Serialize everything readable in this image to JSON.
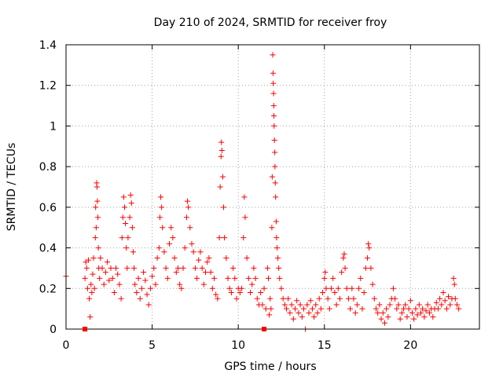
{
  "chart_data": {
    "type": "scatter",
    "title": "Day 210 of 2024, SRMTID for receiver froy",
    "xlabel": "GPS time / hours",
    "ylabel": "SRMTID / TECUs",
    "xlim": [
      0,
      24
    ],
    "ylim": [
      0,
      1.4
    ],
    "x_ticks": [
      0,
      5,
      10,
      15,
      20
    ],
    "x_tick_labels": [
      "0",
      "5",
      "10",
      "15",
      "20"
    ],
    "y_ticks": [
      0,
      0.2,
      0.4,
      0.6,
      0.8,
      1.0,
      1.2,
      1.4
    ],
    "y_tick_labels": [
      "0",
      "0.2",
      "0.4",
      "0.6",
      "0.8",
      "1",
      "1.2",
      "1.4"
    ],
    "grid": true,
    "marker": "plus",
    "color": "#ff0000",
    "outage_markers_x": [
      1.1,
      11.5
    ],
    "series": [
      {
        "name": "SRMTID",
        "points": [
          [
            0.0,
            0.26
          ],
          [
            1.1,
            0.25
          ],
          [
            1.15,
            0.33
          ],
          [
            1.2,
            0.3
          ],
          [
            1.25,
            0.2
          ],
          [
            1.3,
            0.34
          ],
          [
            1.35,
            0.15
          ],
          [
            1.4,
            0.06
          ],
          [
            1.45,
            0.22
          ],
          [
            1.5,
            0.18
          ],
          [
            1.55,
            0.27
          ],
          [
            1.6,
            0.35
          ],
          [
            1.65,
            0.2
          ],
          [
            1.7,
            0.45
          ],
          [
            1.72,
            0.6
          ],
          [
            1.75,
            0.5
          ],
          [
            1.78,
            0.72
          ],
          [
            1.8,
            0.7
          ],
          [
            1.82,
            0.63
          ],
          [
            1.85,
            0.55
          ],
          [
            1.88,
            0.4
          ],
          [
            1.9,
            0.3
          ],
          [
            1.95,
            0.25
          ],
          [
            2.0,
            0.35
          ],
          [
            2.1,
            0.3
          ],
          [
            2.2,
            0.22
          ],
          [
            2.3,
            0.28
          ],
          [
            2.4,
            0.33
          ],
          [
            2.5,
            0.24
          ],
          [
            2.6,
            0.3
          ],
          [
            2.7,
            0.25
          ],
          [
            2.8,
            0.18
          ],
          [
            2.9,
            0.3
          ],
          [
            3.0,
            0.27
          ],
          [
            3.1,
            0.22
          ],
          [
            3.2,
            0.15
          ],
          [
            3.25,
            0.45
          ],
          [
            3.3,
            0.55
          ],
          [
            3.35,
            0.65
          ],
          [
            3.4,
            0.6
          ],
          [
            3.45,
            0.52
          ],
          [
            3.5,
            0.4
          ],
          [
            3.55,
            0.3
          ],
          [
            3.6,
            0.45
          ],
          [
            3.7,
            0.55
          ],
          [
            3.75,
            0.66
          ],
          [
            3.8,
            0.62
          ],
          [
            3.85,
            0.5
          ],
          [
            3.9,
            0.38
          ],
          [
            3.95,
            0.3
          ],
          [
            4.0,
            0.22
          ],
          [
            4.1,
            0.18
          ],
          [
            4.2,
            0.25
          ],
          [
            4.3,
            0.15
          ],
          [
            4.4,
            0.2
          ],
          [
            4.5,
            0.28
          ],
          [
            4.6,
            0.24
          ],
          [
            4.7,
            0.17
          ],
          [
            4.8,
            0.12
          ],
          [
            4.9,
            0.2
          ],
          [
            5.0,
            0.26
          ],
          [
            5.1,
            0.3
          ],
          [
            5.2,
            0.22
          ],
          [
            5.3,
            0.35
          ],
          [
            5.4,
            0.4
          ],
          [
            5.45,
            0.55
          ],
          [
            5.5,
            0.65
          ],
          [
            5.55,
            0.6
          ],
          [
            5.6,
            0.5
          ],
          [
            5.7,
            0.38
          ],
          [
            5.8,
            0.3
          ],
          [
            5.9,
            0.25
          ],
          [
            6.0,
            0.42
          ],
          [
            6.1,
            0.5
          ],
          [
            6.2,
            0.45
          ],
          [
            6.3,
            0.35
          ],
          [
            6.4,
            0.28
          ],
          [
            6.5,
            0.3
          ],
          [
            6.6,
            0.22
          ],
          [
            6.7,
            0.2
          ],
          [
            6.8,
            0.3
          ],
          [
            6.9,
            0.4
          ],
          [
            7.0,
            0.55
          ],
          [
            7.05,
            0.63
          ],
          [
            7.1,
            0.6
          ],
          [
            7.2,
            0.5
          ],
          [
            7.3,
            0.42
          ],
          [
            7.4,
            0.38
          ],
          [
            7.5,
            0.3
          ],
          [
            7.6,
            0.25
          ],
          [
            7.7,
            0.34
          ],
          [
            7.8,
            0.38
          ],
          [
            7.9,
            0.3
          ],
          [
            8.0,
            0.22
          ],
          [
            8.1,
            0.28
          ],
          [
            8.2,
            0.33
          ],
          [
            8.3,
            0.35
          ],
          [
            8.4,
            0.28
          ],
          [
            8.5,
            0.2
          ],
          [
            8.6,
            0.25
          ],
          [
            8.7,
            0.17
          ],
          [
            8.8,
            0.15
          ],
          [
            8.9,
            0.45
          ],
          [
            8.95,
            0.7
          ],
          [
            9.0,
            0.85
          ],
          [
            9.02,
            0.92
          ],
          [
            9.05,
            0.88
          ],
          [
            9.1,
            0.75
          ],
          [
            9.15,
            0.6
          ],
          [
            9.2,
            0.45
          ],
          [
            9.3,
            0.35
          ],
          [
            9.4,
            0.25
          ],
          [
            9.5,
            0.2
          ],
          [
            9.6,
            0.18
          ],
          [
            9.7,
            0.3
          ],
          [
            9.8,
            0.25
          ],
          [
            9.9,
            0.15
          ],
          [
            10.0,
            0.2
          ],
          [
            10.1,
            0.18
          ],
          [
            10.2,
            0.2
          ],
          [
            10.3,
            0.45
          ],
          [
            10.35,
            0.65
          ],
          [
            10.4,
            0.55
          ],
          [
            10.5,
            0.35
          ],
          [
            10.6,
            0.25
          ],
          [
            10.7,
            0.18
          ],
          [
            10.8,
            0.22
          ],
          [
            10.9,
            0.3
          ],
          [
            11.0,
            0.25
          ],
          [
            11.1,
            0.15
          ],
          [
            11.2,
            0.12
          ],
          [
            11.3,
            0.18
          ],
          [
            11.4,
            0.12
          ],
          [
            11.5,
            0.2
          ],
          [
            11.6,
            0.1
          ],
          [
            11.7,
            0.3
          ],
          [
            11.75,
            0.25
          ],
          [
            11.8,
            0.07
          ],
          [
            11.85,
            0.15
          ],
          [
            11.9,
            0.1
          ],
          [
            11.95,
            0.5
          ],
          [
            11.97,
            0.75
          ],
          [
            12.0,
            1.35
          ],
          [
            12.02,
            1.26
          ],
          [
            12.03,
            1.21
          ],
          [
            12.05,
            1.16
          ],
          [
            12.06,
            1.1
          ],
          [
            12.07,
            1.05
          ],
          [
            12.08,
            1.0
          ],
          [
            12.1,
            0.93
          ],
          [
            12.12,
            0.87
          ],
          [
            12.13,
            0.8
          ],
          [
            12.15,
            0.72
          ],
          [
            12.17,
            0.65
          ],
          [
            12.2,
            0.53
          ],
          [
            12.22,
            0.45
          ],
          [
            12.25,
            0.4
          ],
          [
            12.3,
            0.35
          ],
          [
            12.35,
            0.3
          ],
          [
            12.4,
            0.25
          ],
          [
            12.5,
            0.2
          ],
          [
            12.6,
            0.15
          ],
          [
            12.7,
            0.12
          ],
          [
            12.8,
            0.1
          ],
          [
            12.9,
            0.15
          ],
          [
            13.0,
            0.08
          ],
          [
            13.1,
            0.12
          ],
          [
            13.2,
            0.05
          ],
          [
            13.3,
            0.1
          ],
          [
            13.4,
            0.14
          ],
          [
            13.5,
            0.08
          ],
          [
            13.6,
            0.12
          ],
          [
            13.7,
            0.06
          ],
          [
            13.8,
            0.1
          ],
          [
            13.9,
            0.0
          ],
          [
            14.0,
            0.12
          ],
          [
            14.1,
            0.08
          ],
          [
            14.2,
            0.14
          ],
          [
            14.3,
            0.1
          ],
          [
            14.4,
            0.06
          ],
          [
            14.5,
            0.12
          ],
          [
            14.6,
            0.08
          ],
          [
            14.7,
            0.15
          ],
          [
            14.8,
            0.1
          ],
          [
            14.9,
            0.18
          ],
          [
            15.0,
            0.25
          ],
          [
            15.05,
            0.28
          ],
          [
            15.1,
            0.2
          ],
          [
            15.2,
            0.15
          ],
          [
            15.3,
            0.1
          ],
          [
            15.4,
            0.2
          ],
          [
            15.5,
            0.25
          ],
          [
            15.6,
            0.18
          ],
          [
            15.7,
            0.12
          ],
          [
            15.8,
            0.2
          ],
          [
            15.9,
            0.15
          ],
          [
            16.0,
            0.28
          ],
          [
            16.1,
            0.35
          ],
          [
            16.15,
            0.37
          ],
          [
            16.2,
            0.3
          ],
          [
            16.3,
            0.2
          ],
          [
            16.4,
            0.15
          ],
          [
            16.5,
            0.1
          ],
          [
            16.6,
            0.2
          ],
          [
            16.7,
            0.15
          ],
          [
            16.8,
            0.08
          ],
          [
            16.9,
            0.12
          ],
          [
            17.0,
            0.2
          ],
          [
            17.1,
            0.25
          ],
          [
            17.2,
            0.1
          ],
          [
            17.3,
            0.18
          ],
          [
            17.4,
            0.3
          ],
          [
            17.5,
            0.35
          ],
          [
            17.55,
            0.42
          ],
          [
            17.6,
            0.4
          ],
          [
            17.7,
            0.3
          ],
          [
            17.8,
            0.22
          ],
          [
            17.9,
            0.15
          ],
          [
            18.0,
            0.1
          ],
          [
            18.1,
            0.08
          ],
          [
            18.2,
            0.12
          ],
          [
            18.3,
            0.05
          ],
          [
            18.4,
            0.08
          ],
          [
            18.5,
            0.03
          ],
          [
            18.6,
            0.1
          ],
          [
            18.7,
            0.06
          ],
          [
            18.8,
            0.12
          ],
          [
            18.9,
            0.15
          ],
          [
            19.0,
            0.2
          ],
          [
            19.1,
            0.15
          ],
          [
            19.2,
            0.1
          ],
          [
            19.3,
            0.12
          ],
          [
            19.4,
            0.05
          ],
          [
            19.5,
            0.08
          ],
          [
            19.6,
            0.1
          ],
          [
            19.7,
            0.12
          ],
          [
            19.8,
            0.06
          ],
          [
            19.9,
            0.1
          ],
          [
            20.0,
            0.14
          ],
          [
            20.1,
            0.08
          ],
          [
            20.2,
            0.05
          ],
          [
            20.3,
            0.1
          ],
          [
            20.4,
            0.07
          ],
          [
            20.5,
            0.12
          ],
          [
            20.6,
            0.08
          ],
          [
            20.7,
            0.1
          ],
          [
            20.8,
            0.06
          ],
          [
            20.9,
            0.09
          ],
          [
            21.0,
            0.12
          ],
          [
            21.1,
            0.08
          ],
          [
            21.2,
            0.1
          ],
          [
            21.3,
            0.06
          ],
          [
            21.4,
            0.1
          ],
          [
            21.5,
            0.13
          ],
          [
            21.6,
            0.1
          ],
          [
            21.7,
            0.15
          ],
          [
            21.8,
            0.12
          ],
          [
            21.9,
            0.18
          ],
          [
            22.0,
            0.14
          ],
          [
            22.1,
            0.1
          ],
          [
            22.2,
            0.16
          ],
          [
            22.3,
            0.12
          ],
          [
            22.4,
            0.15
          ],
          [
            22.5,
            0.25
          ],
          [
            22.55,
            0.22
          ],
          [
            22.6,
            0.15
          ],
          [
            22.7,
            0.12
          ],
          [
            22.8,
            0.1
          ]
        ]
      }
    ]
  }
}
